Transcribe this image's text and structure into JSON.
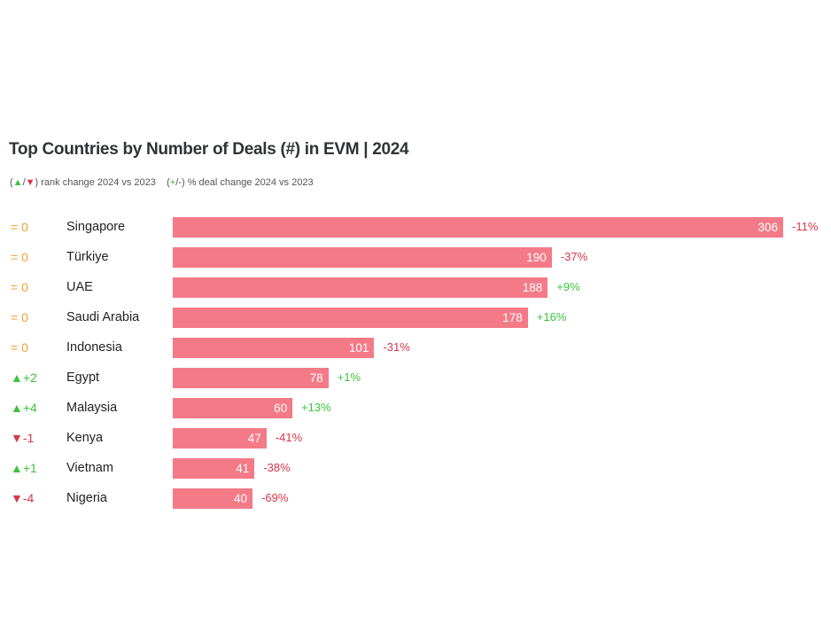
{
  "chart_data": {
    "type": "bar",
    "orientation": "horizontal",
    "title": "Top Countries by Number of Deals (#) in EVM | 2024",
    "legend": {
      "rank": "rank change 2024 vs 2023",
      "pct": "% deal change 2024 vs 2023"
    },
    "categories": [
      "Singapore",
      "Türkiye",
      "UAE",
      "Saudi Arabia",
      "Indonesia",
      "Egypt",
      "Malaysia",
      "Kenya",
      "Vietnam",
      "Nigeria"
    ],
    "values": [
      306,
      190,
      188,
      178,
      101,
      78,
      60,
      47,
      41,
      40
    ],
    "rank_change": [
      "=0",
      "=0",
      "=0",
      "=0",
      "=0",
      "+2",
      "+4",
      "-1",
      "+1",
      "-4"
    ],
    "pct_change": [
      "-11%",
      "-37%",
      "+9%",
      "+16%",
      "-31%",
      "+1%",
      "+13%",
      "-41%",
      "-38%",
      "-69%"
    ],
    "colors": {
      "bar": "#f47a87",
      "up": "#3cc43c",
      "down": "#d9364a",
      "same": "#f0a030"
    },
    "xlim": [
      0,
      306
    ]
  }
}
